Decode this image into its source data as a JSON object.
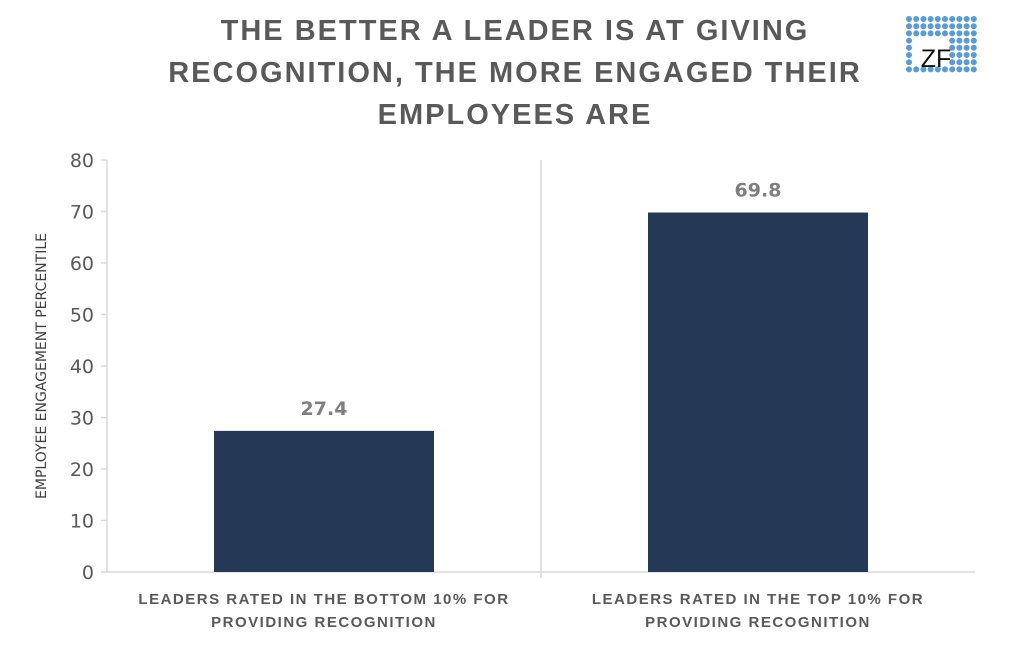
{
  "chart_data": {
    "type": "bar",
    "title": "THE BETTER A LEADER IS AT GIVING RECOGNITION, THE MORE ENGAGED THEIR EMPLOYEES ARE",
    "categories": [
      [
        "LEADERS RATED IN THE BOTTOM 10% FOR",
        "PROVIDING RECOGNITION"
      ],
      [
        "LEADERS RATED IN THE TOP 10% FOR",
        "PROVIDING RECOGNITION"
      ]
    ],
    "values": [
      27.4,
      69.8
    ],
    "data_labels": [
      "27.4",
      "69.8"
    ],
    "ylabel": "EMPLOYEE ENGAGEMENT PERCENTILE",
    "xlabel": "",
    "ylim": [
      0,
      80
    ],
    "yticks": [
      0,
      10,
      20,
      30,
      40,
      50,
      60,
      70,
      80
    ],
    "grid": false,
    "bar_color": "#253856"
  },
  "logo": {
    "text": "ZF",
    "dot_color": "#5B9BD5"
  }
}
